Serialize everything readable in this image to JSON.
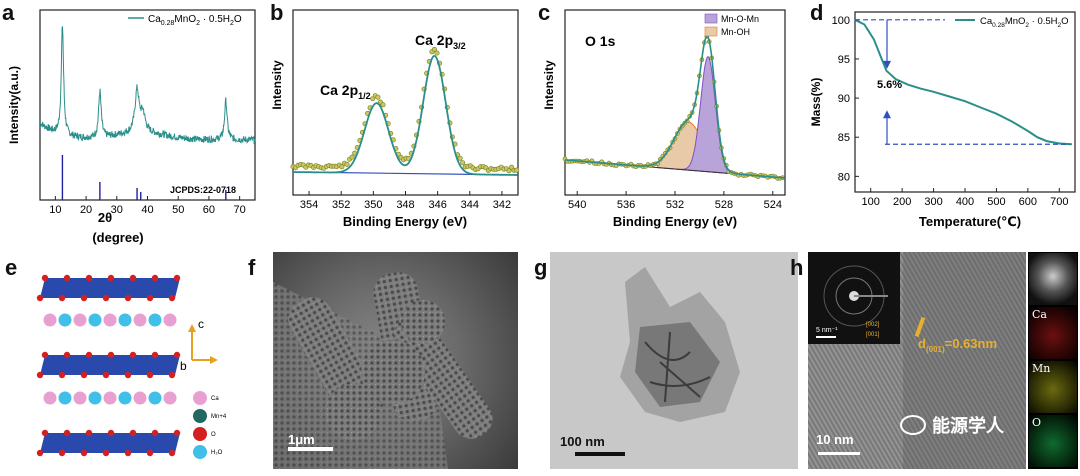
{
  "panels": {
    "a": {
      "label": "a",
      "ylabel": "Intensity(a.u.)",
      "xlabel": "2θ",
      "xlabel2": "(degree)",
      "legend": {
        "name": "Ca",
        "sub1": "0.28",
        "name2": "MnO",
        "sub2": "2",
        "rest": " · 0.5H",
        "sub3": "2",
        "end": "O"
      },
      "ref": "JCPDS:22-0718",
      "xticks": [
        "10",
        "20",
        "30",
        "40",
        "50",
        "60",
        "70"
      ]
    },
    "b": {
      "label": "b",
      "ylabel": "Intensity",
      "xlabel": "Binding Energy (eV)",
      "peak1": "Ca 2p",
      "peak1_sub": "1/2",
      "peak2": "Ca 2p",
      "peak2_sub": "3/2",
      "xticks": [
        "354",
        "352",
        "350",
        "348",
        "346",
        "344",
        "342"
      ]
    },
    "c": {
      "label": "c",
      "ylabel": "Intensity",
      "xlabel": "Binding Energy (eV)",
      "title": "O 1s",
      "legend1": "Mn-O-Mn",
      "legend2": "Mn-OH",
      "xticks": [
        "540",
        "536",
        "532",
        "528",
        "524"
      ]
    },
    "d": {
      "label": "d",
      "ylabel": "Mass(%)",
      "xlabel": "Temperature(℃)",
      "annotation": "5.6%",
      "legend": {
        "name": "Ca",
        "sub1": "0.28",
        "name2": "MnO",
        "sub2": "2",
        "rest": " · 0.5H",
        "sub3": "2",
        "end": "O"
      },
      "xticks": [
        "100",
        "200",
        "300",
        "400",
        "500",
        "600",
        "700"
      ],
      "yticks": [
        "100",
        "95",
        "90",
        "85",
        "80"
      ]
    },
    "e": {
      "label": "e",
      "axis_c": "c",
      "axis_b": "b",
      "legend": [
        "Ca",
        "Mn+4",
        "O",
        "H₂O"
      ]
    },
    "f": {
      "label": "f",
      "scale": "1μm"
    },
    "g": {
      "label": "g",
      "scale": "100 nm"
    },
    "h": {
      "label": "h",
      "scale": "10 nm",
      "saed_scale": "5 nm⁻¹",
      "hkl1": "[002]",
      "hkl2": "[001]",
      "dspacing": "d",
      "dsub": "(001)",
      "dval": "=0.63nm",
      "maps": [
        "Ca",
        "Mn",
        "O"
      ],
      "watermark": "能源学人"
    }
  },
  "colors": {
    "teal": "#2a8f8a",
    "dot": "#b8b84a",
    "purple": "#b8a4d8",
    "tan": "#e8c9a8",
    "blue_layer": "#1f3fa8",
    "red_atom": "#d42020",
    "pink_atom": "#e8a0d0",
    "cyan_atom": "#40c0e8",
    "dark_green_atom": "#206860",
    "gold": "#e8b030"
  },
  "chart_data": [
    {
      "type": "line",
      "panel": "a",
      "xlabel": "2θ (degree)",
      "ylabel": "Intensity(a.u.)",
      "xlim": [
        5,
        75
      ],
      "peaks_2theta": [
        12.3,
        24.5,
        36.6,
        65.5
      ],
      "reference_lines_2theta": [
        12.3,
        24.5,
        36.6,
        37.8,
        65.5
      ],
      "series": [
        {
          "name": "Ca0.28MnO2·0.5H2O"
        }
      ]
    },
    {
      "type": "line",
      "panel": "b",
      "xlabel": "Binding Energy (eV)",
      "ylabel": "Intensity",
      "xlim": [
        355,
        341
      ],
      "peaks": [
        {
          "name": "Ca 2p1/2",
          "x": 349.8
        },
        {
          "name": "Ca 2p3/2",
          "x": 346.2
        }
      ]
    },
    {
      "type": "line",
      "panel": "c",
      "xlabel": "Binding Energy (eV)",
      "ylabel": "Intensity",
      "xlim": [
        541,
        523
      ],
      "peaks": [
        {
          "name": "Mn-O-Mn",
          "x": 529.3
        },
        {
          "name": "Mn-OH",
          "x": 530.9
        }
      ]
    },
    {
      "type": "line",
      "panel": "d",
      "xlabel": "Temperature(℃)",
      "ylabel": "Mass(%)",
      "xlim": [
        50,
        750
      ],
      "ylim": [
        78,
        101
      ],
      "series": [
        {
          "name": "Ca0.28MnO2·0.5H2O",
          "x": [
            50,
            80,
            110,
            130,
            150,
            180,
            220,
            260,
            300,
            350,
            400,
            450,
            500,
            550,
            600,
            630,
            660,
            700,
            740
          ],
          "y": [
            100,
            99.4,
            97.5,
            95.5,
            93.5,
            92.4,
            91.7,
            91.2,
            90.8,
            90.2,
            89.6,
            88.8,
            88.0,
            87.0,
            85.8,
            85.0,
            84.5,
            84.2,
            84.1
          ]
        }
      ],
      "annotation": "5.6%",
      "reference_levels": [
        100,
        84.1
      ]
    }
  ]
}
